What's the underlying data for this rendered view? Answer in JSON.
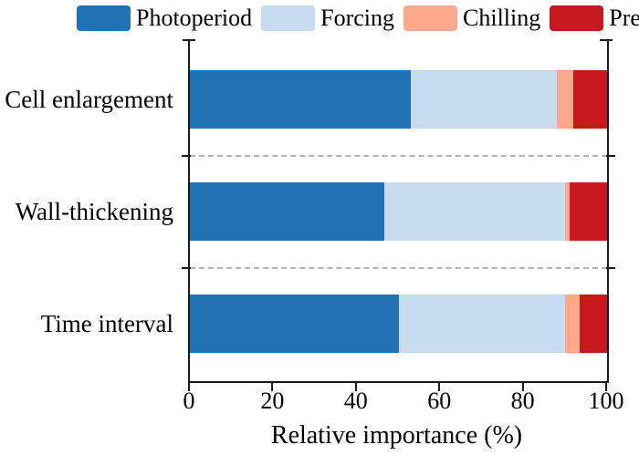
{
  "chart_data": {
    "type": "bar",
    "orientation": "horizontal",
    "stacked": true,
    "title": "",
    "xlabel": "Relative importance (%)",
    "ylabel": "",
    "xlim": [
      0,
      100
    ],
    "x_ticks": [
      "0",
      "20",
      "40",
      "60",
      "80",
      "100"
    ],
    "categories": [
      "Cell enlargement",
      "Wall-thickening",
      "Time interval"
    ],
    "series": [
      {
        "name": "Photoperiod",
        "color": "#2171B5",
        "values": [
          53,
          46.5,
          50
        ]
      },
      {
        "name": "Forcing",
        "color": "#C6DBEF",
        "values": [
          35,
          43.5,
          40
        ]
      },
      {
        "name": "Chilling",
        "color": "#FAA98C",
        "values": [
          4,
          1,
          3.5
        ]
      },
      {
        "name": "Prep",
        "color": "#C6191E",
        "values": [
          8,
          9,
          6.5
        ]
      }
    ],
    "legend_position": "top",
    "grid": "dashed row separators",
    "axis_color": "#1a1a1a"
  },
  "layout_note": "values are percent of total; each row sums to 100"
}
